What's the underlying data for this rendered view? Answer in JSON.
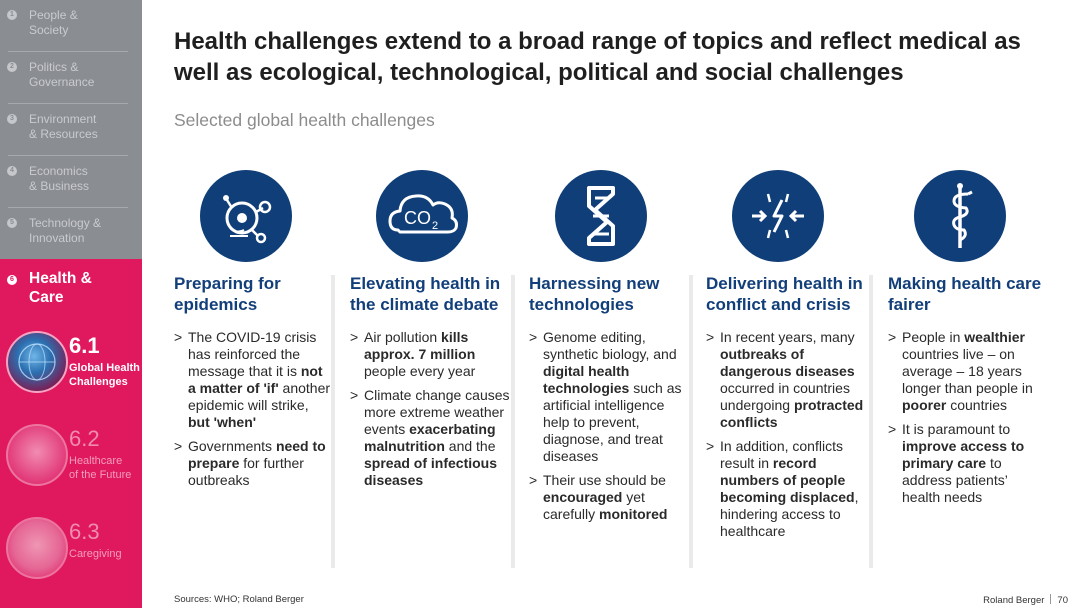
{
  "sidebar": {
    "items": [
      {
        "num": "1",
        "label": "People &\nSociety"
      },
      {
        "num": "2",
        "label": "Politics &\nGovernance"
      },
      {
        "num": "3",
        "label": "Environment\n& Resources"
      },
      {
        "num": "4",
        "label": "Economics\n& Business"
      },
      {
        "num": "5",
        "label": "Technology &\nInnovation"
      }
    ],
    "active": {
      "num": "6",
      "label": "Health &\nCare"
    },
    "subs": [
      {
        "num": "6.1",
        "title": "Global Health\nChallenges"
      },
      {
        "num": "6.2",
        "title": "Healthcare\nof the Future"
      },
      {
        "num": "6.3",
        "title": "Caregiving"
      }
    ]
  },
  "title": "Health challenges extend to a broad range of topics and reflect medical as well as ecological, technological, political and social challenges",
  "subtitle": "Selected global health challenges",
  "columns": [
    {
      "icon": "virus-icon",
      "title": "Preparing for epidemics",
      "bullets": [
        [
          {
            "t": "The COVID-19 crisis has reinforced the message that it is "
          },
          {
            "t": "not a matter of 'if'",
            "b": true
          },
          {
            "t": " another epidemic will strike, "
          },
          {
            "t": "but 'when'",
            "b": true
          }
        ],
        [
          {
            "t": "Governments "
          },
          {
            "t": "need to prepare",
            "b": true
          },
          {
            "t": " for further outbreaks"
          }
        ]
      ]
    },
    {
      "icon": "co2-cloud-icon",
      "title": "Elevating health in the climate debate",
      "bullets": [
        [
          {
            "t": "Air pollution "
          },
          {
            "t": "kills approx. 7 million",
            "b": true
          },
          {
            "t": " people every year"
          }
        ],
        [
          {
            "t": "Climate change causes more extreme weather events "
          },
          {
            "t": "exacerbating malnutrition",
            "b": true
          },
          {
            "t": " and the "
          },
          {
            "t": "spread of infectious diseases",
            "b": true
          }
        ]
      ]
    },
    {
      "icon": "dna-icon",
      "title": "Harnessing new technologies",
      "bullets": [
        [
          {
            "t": "Genome editing, synthetic biology, and "
          },
          {
            "t": "digital health technologies",
            "b": true
          },
          {
            "t": " such as artificial intelligence help to prevent, diagnose, and treat diseases"
          }
        ],
        [
          {
            "t": "Their use should be "
          },
          {
            "t": "encouraged",
            "b": true
          },
          {
            "t": " yet carefully "
          },
          {
            "t": "monitored",
            "b": true
          }
        ]
      ]
    },
    {
      "icon": "conflict-icon",
      "title": "Delivering health in conflict and crisis",
      "bullets": [
        [
          {
            "t": "In recent years, many "
          },
          {
            "t": "outbreaks of dangerous diseases",
            "b": true
          },
          {
            "t": " occurred in countries undergoing "
          },
          {
            "t": "protracted conflicts",
            "b": true
          }
        ],
        [
          {
            "t": "In addition, conflicts result in "
          },
          {
            "t": "record numbers of people becoming displaced",
            "b": true
          },
          {
            "t": ", hindering access to healthcare"
          }
        ]
      ]
    },
    {
      "icon": "caduceus-icon",
      "title": "Making health care fairer",
      "bullets": [
        [
          {
            "t": "People in "
          },
          {
            "t": "wealthier",
            "b": true
          },
          {
            "t": " countries live – on average – 18 years longer than people in "
          },
          {
            "t": "poorer",
            "b": true
          },
          {
            "t": " countries"
          }
        ],
        [
          {
            "t": "It is paramount to "
          },
          {
            "t": "improve access to primary care",
            "b": true
          },
          {
            "t": " to address patients’ health needs"
          }
        ]
      ]
    }
  ],
  "source": "Sources: WHO; Roland Berger",
  "footer": {
    "brand": "Roland Berger",
    "page": "70"
  },
  "colors": {
    "accent": "#e0185e",
    "navy": "#0f3e78",
    "sidebar": "#8a8d92"
  }
}
